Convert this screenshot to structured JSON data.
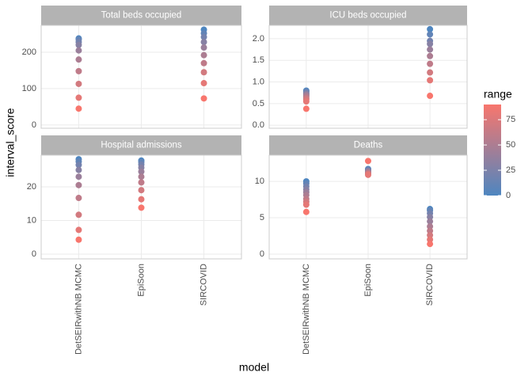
{
  "chart_data": [
    {
      "type": "scatter",
      "title": "Total beds occupied",
      "ylim": [
        -9,
        274
      ],
      "yticks": [
        0,
        100,
        200
      ],
      "values": [
        [
          238,
          235,
          228,
          220,
          205,
          180,
          148,
          113,
          75,
          45
        ],
        [],
        [
          262,
          252,
          242,
          228,
          213,
          192,
          170,
          145,
          115,
          73
        ]
      ]
    },
    {
      "type": "scatter",
      "title": "ICU beds occupied",
      "ylim": [
        -0.07,
        2.31
      ],
      "yticks": [
        {
          "value": 0,
          "label": "0.0"
        },
        0.5,
        {
          "value": 1,
          "label": "1.0"
        },
        1.5,
        {
          "value": 2,
          "label": "2.0"
        }
      ],
      "values": [
        [
          0.8,
          0.78,
          0.75,
          0.72,
          0.7,
          0.67,
          0.63,
          0.6,
          0.55,
          0.38
        ],
        [],
        [
          2.22,
          2.1,
          1.95,
          1.88,
          1.75,
          1.6,
          1.42,
          1.22,
          1.04,
          0.68
        ]
      ]
    },
    {
      "type": "scatter",
      "title": "Hospital admissions",
      "ylim": [
        -1.4,
        29.4
      ],
      "yticks": [
        0,
        10,
        20
      ],
      "values": [
        [
          28.2,
          27.5,
          26.5,
          25,
          23,
          20.5,
          16.7,
          11.7,
          7.2,
          4.3
        ],
        [
          27.8,
          27.3,
          26.6,
          25.7,
          24.5,
          23,
          21.3,
          19,
          16.3,
          13.8
        ],
        []
      ]
    },
    {
      "type": "scatter",
      "title": "Deaths",
      "ylim": [
        -0.65,
        13.6
      ],
      "yticks": [
        0,
        5,
        10
      ],
      "values": [
        [
          10.0,
          9.7,
          9.3,
          8.9,
          8.5,
          8.1,
          7.6,
          7.2,
          6.8,
          5.8
        ],
        [
          11.7,
          11.6,
          11.5,
          11.4,
          11.3,
          11.2,
          11.1,
          11.0,
          10.9,
          12.8
        ],
        [
          6.2,
          6.0,
          5.6,
          5.1,
          4.5,
          3.8,
          3.2,
          2.6,
          2.0,
          1.4
        ]
      ]
    }
  ],
  "shared": {
    "categories": [
      "DetSEIRwithNB MCMC",
      "EpiSoon",
      "SIRCOVID"
    ],
    "ranges": [
      0,
      10,
      20,
      30,
      40,
      50,
      60,
      70,
      80,
      90
    ],
    "x_label": "model",
    "y_label": "interval_score",
    "legend": {
      "title": "range",
      "lim": [
        0,
        90
      ],
      "ticks": [
        0,
        25,
        50,
        75
      ],
      "low_color": "#4E86C0",
      "high_color": "#F8766D"
    }
  }
}
